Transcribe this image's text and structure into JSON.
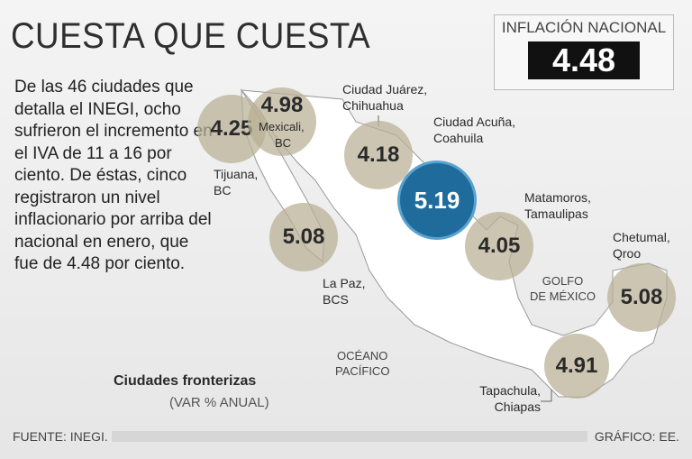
{
  "title": "CUESTA QUE CUESTA",
  "intro": "De las 46 ciudades que detalla el INEGI, ocho sufrieron el incremento en el IVA de 11 a 16 por ciento. De éstas, cinco registraron un nivel inflacionario por arriba del nacional en enero, que fue de 4.48 por ciento.",
  "national": {
    "label": "INFLACIÓN NACIONAL",
    "value": "4.48"
  },
  "cities": [
    {
      "name": "Tijuana, BC",
      "line1": "Tijuana,",
      "line2": "BC",
      "value": "4.25"
    },
    {
      "name": "Mexicali, BC",
      "line1": "Mexicali,",
      "line2": "BC",
      "value": "4.98"
    },
    {
      "name": "La Paz, BCS",
      "line1": "La Paz,",
      "line2": "BCS",
      "value": "5.08"
    },
    {
      "name": "Ciudad Juárez, Chihuahua",
      "line1": "Ciudad Juárez,",
      "line2": "Chihuahua",
      "value": "4.18"
    },
    {
      "name": "Ciudad Acuña, Coahuila",
      "line1": "Ciudad Acuña,",
      "line2": "Coahuila",
      "value": "5.19"
    },
    {
      "name": "Matamoros, Tamaulipas",
      "line1": "Matamoros,",
      "line2": "Tamaulipas",
      "value": "4.05"
    },
    {
      "name": "Chetumal, Qroo",
      "line1": "Chetumal,",
      "line2": "Qroo",
      "value": "5.08"
    },
    {
      "name": "Tapachula, Chiapas",
      "line1": "Tapachula,",
      "line2": "Chiapas",
      "value": "4.91"
    }
  ],
  "seas": {
    "gulf1": "GOLFO",
    "gulf2": "DE MÉXICO",
    "ocean1": "OCÉANO",
    "ocean2": "PACÍFICO"
  },
  "legend": {
    "title": "Ciudades fronterizas",
    "subtitle": "(VAR % ANUAL)"
  },
  "footer": {
    "source": "FUENTE: INEGI.",
    "credit": "GRÁFICO: EE."
  },
  "colors": {
    "highlight": "#1f6c9c",
    "circle": "#b9af94"
  }
}
